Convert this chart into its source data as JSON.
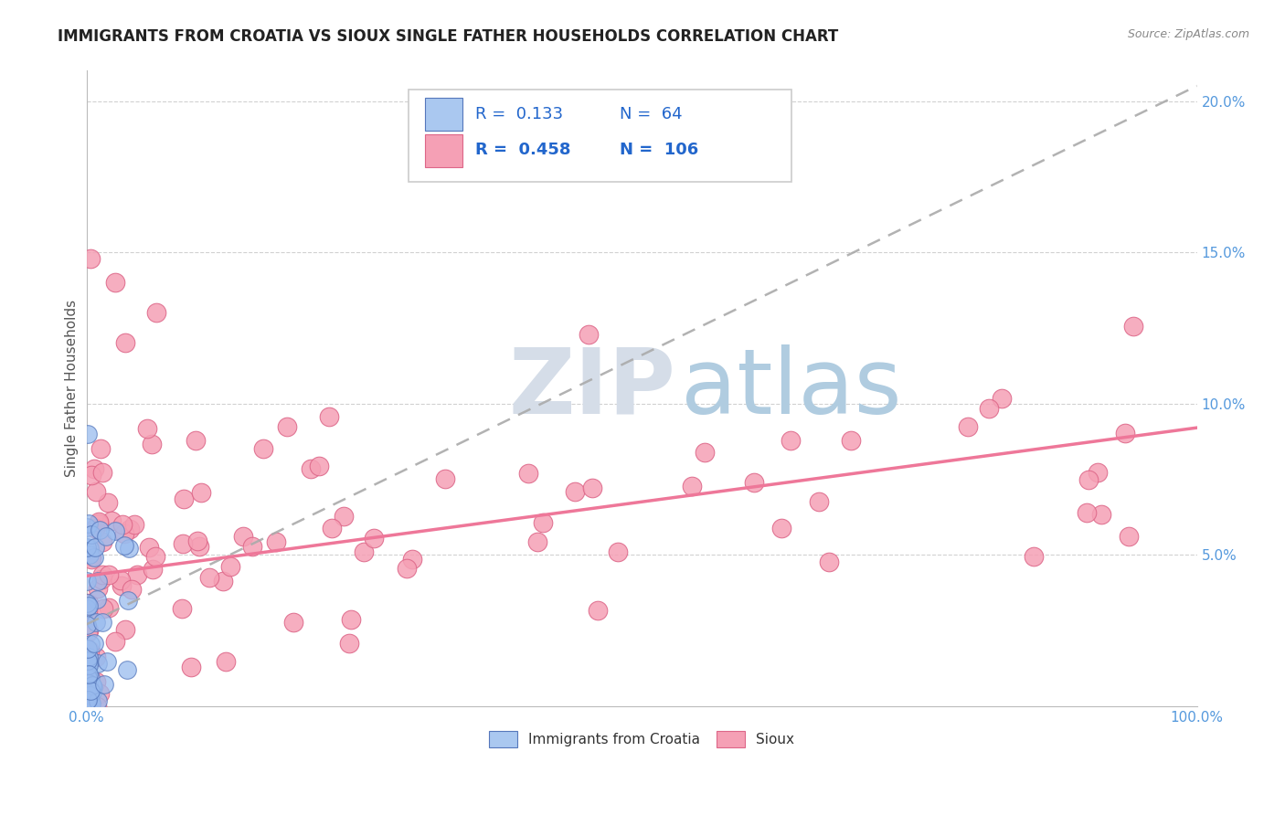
{
  "title": "IMMIGRANTS FROM CROATIA VS SIOUX SINGLE FATHER HOUSEHOLDS CORRELATION CHART",
  "source": "Source: ZipAtlas.com",
  "ylabel": "Single Father Households",
  "xlim": [
    0.0,
    1.0
  ],
  "ylim": [
    0.0,
    0.21
  ],
  "xtick_positions": [
    0.0,
    1.0
  ],
  "xticklabels": [
    "0.0%",
    "100.0%"
  ],
  "ytick_positions": [
    0.05,
    0.1,
    0.15,
    0.2
  ],
  "yticklabels": [
    "5.0%",
    "10.0%",
    "15.0%",
    "20.0%"
  ],
  "legend_entries": [
    {
      "label": "Immigrants from Croatia",
      "R": "0.133",
      "N": "64",
      "color": "#aac8f0"
    },
    {
      "label": "Sioux",
      "R": "0.458",
      "N": "106",
      "color": "#f5a0b5"
    }
  ],
  "grid_color": "#cccccc",
  "background_color": "#ffffff",
  "title_color": "#222222",
  "ylabel_color": "#555555",
  "yticklabel_color": "#5599dd",
  "croatia_dot_color": "#99bbee",
  "croatia_dot_edge": "#5577bb",
  "sioux_dot_color": "#f5a0b5",
  "sioux_dot_edge": "#dd6688",
  "croatia_line_color": "#aaaaaa",
  "sioux_line_color": "#ee7799",
  "croatia_trend_x": [
    0.0,
    1.0
  ],
  "croatia_trend_y": [
    0.027,
    0.205
  ],
  "sioux_trend_x": [
    0.0,
    1.0
  ],
  "sioux_trend_y": [
    0.043,
    0.092
  ],
  "legend_box_color": "#ffffff",
  "legend_border_color": "#cccccc",
  "legend_text_color": "#2266cc",
  "watermark_zip_color": "#d5dde8",
  "watermark_atlas_color": "#b0cce0"
}
